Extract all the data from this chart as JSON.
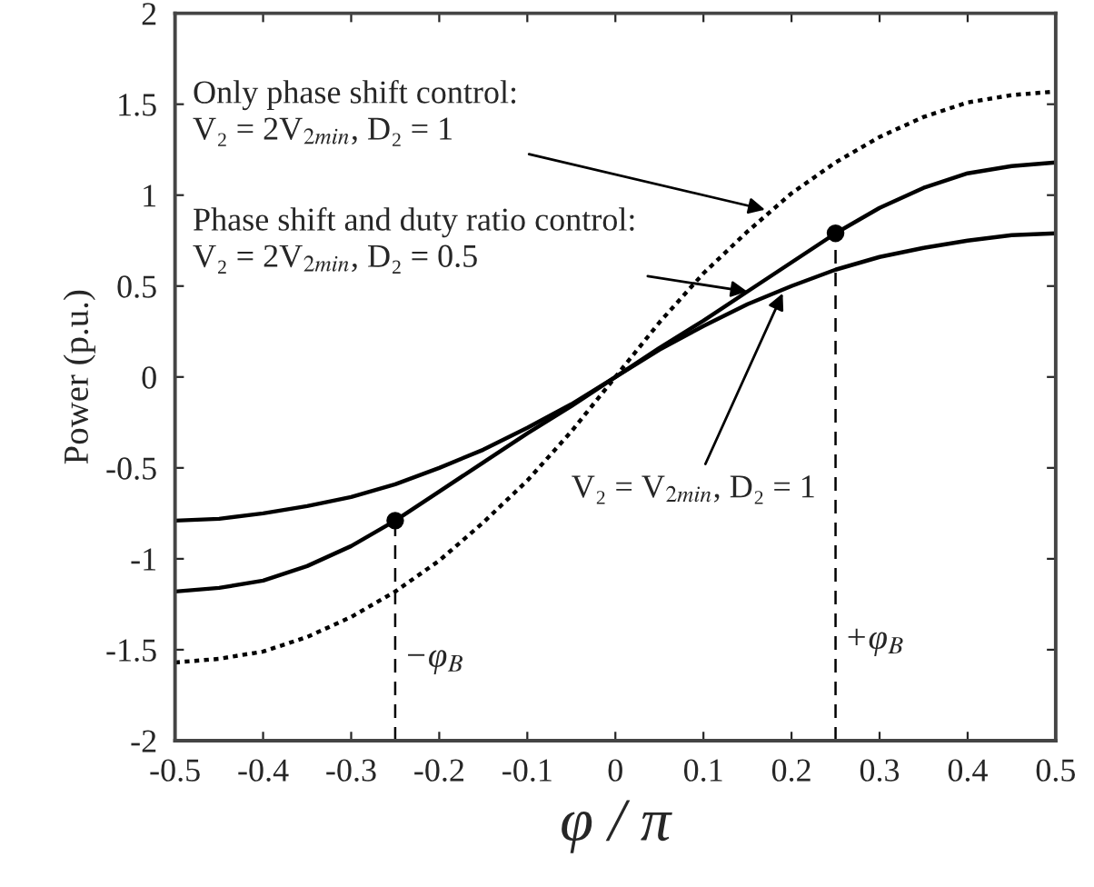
{
  "chart_data": {
    "type": "line",
    "xlabel": "φ / π",
    "ylabel": "Power (p.u.)",
    "x": [
      -0.5,
      -0.45,
      -0.4,
      -0.35,
      -0.3,
      -0.25,
      -0.2,
      -0.15,
      -0.1,
      -0.05,
      0,
      0.05,
      0.1,
      0.15,
      0.2,
      0.25,
      0.3,
      0.35,
      0.4,
      0.45,
      0.5
    ],
    "series": [
      {
        "color": "#000000",
        "line_style": "dotted",
        "values": [
          -1.57,
          -1.55,
          -1.51,
          -1.43,
          -1.32,
          -1.18,
          -1.01,
          -0.8,
          -0.57,
          -0.3,
          0,
          0.3,
          0.57,
          0.8,
          1.01,
          1.18,
          1.32,
          1.43,
          1.51,
          1.55,
          1.57
        ]
      },
      {
        "color": "#000000",
        "line_style": "solid",
        "values": [
          -1.18,
          -1.16,
          -1.12,
          -1.04,
          -0.93,
          -0.79,
          -0.63,
          -0.47,
          -0.31,
          -0.16,
          0,
          0.16,
          0.31,
          0.47,
          0.63,
          0.79,
          0.93,
          1.04,
          1.12,
          1.16,
          1.18
        ]
      },
      {
        "color": "#000000",
        "line_style": "solid",
        "values": [
          -0.79,
          -0.78,
          -0.75,
          -0.71,
          -0.66,
          -0.59,
          -0.5,
          -0.4,
          -0.28,
          -0.15,
          0,
          0.15,
          0.28,
          0.4,
          0.5,
          0.59,
          0.66,
          0.71,
          0.75,
          0.78,
          0.79
        ]
      },
      {
        "type": "scatter",
        "color": "#000000",
        "marker": "circle",
        "x": [
          -0.25,
          0.25
        ],
        "values": [
          -0.79,
          0.79
        ]
      }
    ],
    "ref_lines": [
      {
        "axis": "x",
        "value": -0.25,
        "label": "−φ$_{B}$",
        "line_style": "dashed"
      },
      {
        "axis": "x",
        "value": 0.25,
        "label": "+φ$_{B}$",
        "line_style": "dashed"
      }
    ],
    "annotations": [
      "Only phase shift control:\nV₂ = 2V$_{2min}$, D₂ = 1",
      {
        "text": "Phase shift and duty ratio control:\nV₂ = 2V$_{2min}$, D₂ = 0.5",
        "x": 0.15,
        "y": 0.47
      },
      {
        "text": "V₂ = V$_{2min}$, D₂ = 1",
        "x": 0.19,
        "y": 0.46
      }
    ],
    "xlim": [
      -0.5,
      0.5
    ],
    "xticks": [
      -0.5,
      -0.4,
      -0.3,
      -0.2,
      -0.1,
      0,
      0.1,
      0.2,
      0.3,
      0.4,
      0.5
    ],
    "ylim": [
      -2,
      2
    ],
    "yticks": [
      -2,
      -1.5,
      -1,
      -0.5,
      0,
      0.5,
      1,
      1.5,
      2
    ],
    "grid": false,
    "legend": false
  }
}
